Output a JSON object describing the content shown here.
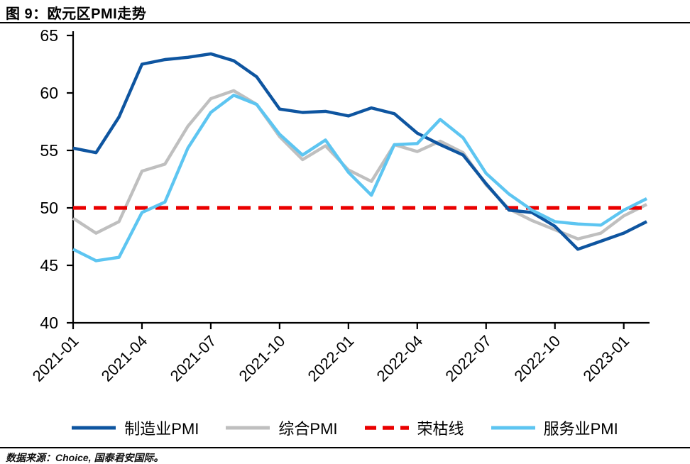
{
  "title": "图 9：欧元区PMI走势",
  "source_note": "数据来源：Choice, 国泰君安国际。",
  "legend": {
    "items": [
      {
        "label": "制造业PMI",
        "color": "#0e55a0",
        "style": "solid"
      },
      {
        "label": "综合PMI",
        "color": "#bfbfbf",
        "style": "solid"
      },
      {
        "label": "荣枯线",
        "color": "#ea0000",
        "style": "dashed"
      },
      {
        "label": "服务业PMI",
        "color": "#5dc5f1",
        "style": "solid"
      }
    ]
  },
  "chart_data": {
    "type": "line",
    "title": "欧元区PMI走势",
    "xlabel": "",
    "ylabel": "",
    "ylim": [
      40,
      65
    ],
    "y_ticks": [
      40,
      45,
      50,
      55,
      60,
      65
    ],
    "x_tick_labels": [
      "2021-01",
      "2021-04",
      "2021-07",
      "2021-10",
      "2022-01",
      "2022-04",
      "2022-07",
      "2022-10",
      "2023-01"
    ],
    "x_tick_every": 3,
    "n_points": 26,
    "grid": false,
    "legend_position": "bottom",
    "axis_color": "#000000",
    "refline": {
      "id": "boom-bust",
      "label": "荣枯线",
      "value": 50,
      "color": "#ea0000",
      "dashed": true
    },
    "series": [
      {
        "id": "composite-pmi",
        "name": "综合PMI",
        "color": "#bfbfbf",
        "values": [
          49.1,
          47.8,
          48.8,
          53.2,
          53.8,
          57.1,
          59.5,
          60.2,
          59.0,
          56.2,
          54.2,
          55.4,
          53.3,
          52.3,
          55.5,
          54.9,
          55.8,
          54.8,
          52.0,
          49.9,
          48.9,
          48.1,
          47.3,
          47.8,
          49.3,
          50.3
        ]
      },
      {
        "id": "manufacturing-pmi",
        "name": "制造业PMI",
        "color": "#0e55a0",
        "values": [
          55.2,
          54.8,
          57.9,
          62.5,
          62.9,
          63.1,
          63.4,
          62.8,
          61.4,
          58.6,
          58.3,
          58.4,
          58.0,
          58.7,
          58.2,
          56.5,
          55.5,
          54.6,
          52.1,
          49.8,
          49.6,
          48.4,
          46.4,
          47.1,
          47.8,
          48.8
        ]
      },
      {
        "id": "services-pmi",
        "name": "服务业PMI",
        "color": "#5dc5f1",
        "values": [
          46.4,
          45.4,
          45.7,
          49.6,
          50.5,
          55.2,
          58.3,
          59.8,
          59.0,
          56.4,
          54.6,
          55.9,
          53.1,
          51.1,
          55.5,
          55.6,
          57.7,
          56.1,
          53.0,
          51.2,
          49.8,
          48.8,
          48.6,
          48.5,
          49.8,
          50.8
        ]
      }
    ]
  }
}
